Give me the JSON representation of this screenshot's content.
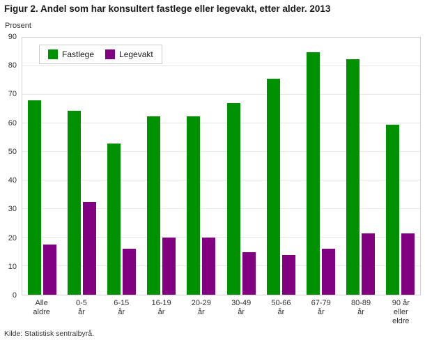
{
  "title": "Figur 2. Andel som har konsultert fastlege eller legevakt, etter alder. 2013",
  "ylabel": "Prosent",
  "source": "Kilde: Statistisk sentralbyrå.",
  "chart_data": {
    "type": "bar",
    "title": "Figur 2. Andel som har konsultert fastlege eller legevakt, etter alder. 2013",
    "xlabel": "",
    "ylabel": "Prosent",
    "ylim": [
      0,
      90
    ],
    "ytick_step": 10,
    "grid": true,
    "legend_position": "top-left",
    "categories": [
      "Alle\naldre",
      "0-5\når",
      "6-15\når",
      "16-19\når",
      "20-29\når",
      "30-49\når",
      "50-66\når",
      "67-79\når",
      "80-89\når",
      "90 år\neller\neldre"
    ],
    "series": [
      {
        "name": "Fastlege",
        "color": "#009100",
        "values": [
          68,
          64.5,
          53,
          62.5,
          62.5,
          67,
          75.5,
          85,
          82.5,
          59.5
        ]
      },
      {
        "name": "Legevakt",
        "color": "#800080",
        "values": [
          17.5,
          32.5,
          16,
          20,
          20,
          15,
          14,
          16,
          21.5,
          21.5
        ]
      }
    ]
  }
}
